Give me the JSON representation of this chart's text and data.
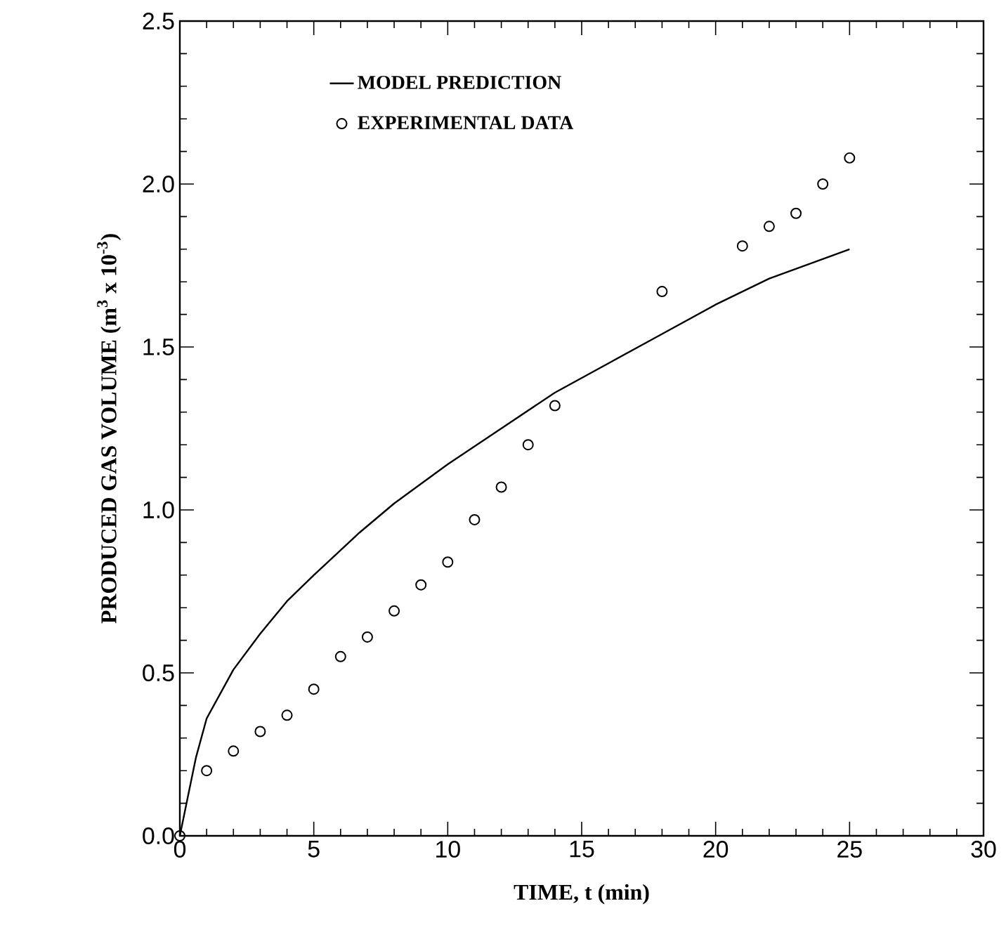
{
  "chart_data": {
    "type": "scatter",
    "xlabel": "TIME, t (min)",
    "ylabel": "PRODUCED GAS VOLUME (m$^{3}$ x 10$^{-3}$)",
    "xlim": [
      0,
      30
    ],
    "ylim": [
      0,
      2.5
    ],
    "xticks": [
      0,
      5,
      10,
      15,
      20,
      25,
      30
    ],
    "yticks": [
      {
        "value": 0,
        "label": "0.0"
      },
      {
        "value": 0.5,
        "label": "0.5"
      },
      {
        "value": 1,
        "label": "1.0"
      },
      {
        "value": 1.5,
        "label": "1.5"
      },
      {
        "value": 2,
        "label": "2.0"
      },
      {
        "value": 2.5,
        "label": "2.5"
      }
    ],
    "legend": "top left",
    "grid": false,
    "series": [
      {
        "name": "MODEL PREDICTION",
        "type": "line",
        "color": "#000000",
        "marker": "none",
        "line_style": "solid",
        "x": [
          0,
          0.3,
          0.6,
          1,
          2,
          3,
          4,
          5,
          6.7,
          8,
          10,
          12,
          14,
          16,
          18,
          20,
          22,
          25
        ],
        "values": [
          0,
          0.12,
          0.24,
          0.36,
          0.51,
          0.62,
          0.72,
          0.8,
          0.93,
          1.02,
          1.14,
          1.25,
          1.36,
          1.45,
          1.54,
          1.63,
          1.71,
          1.8
        ]
      },
      {
        "name": "EXPERIMENTAL DATA",
        "color": "#000000",
        "marker": "circle",
        "x": [
          0,
          1,
          2,
          3,
          4,
          5,
          6,
          7,
          8,
          9,
          10,
          11,
          12,
          13,
          14,
          18,
          21,
          22,
          23,
          24,
          25
        ],
        "values": [
          0,
          0.2,
          0.26,
          0.32,
          0.37,
          0.45,
          0.55,
          0.61,
          0.69,
          0.77,
          0.84,
          0.97,
          1.07,
          1.2,
          1.32,
          1.67,
          1.81,
          1.87,
          1.91,
          2.0,
          2.08
        ]
      }
    ]
  }
}
